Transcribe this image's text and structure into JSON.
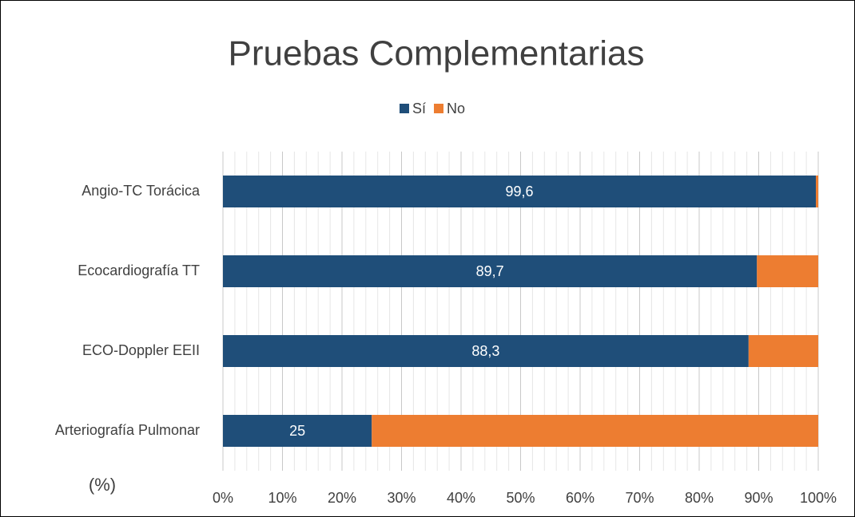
{
  "chart_data": {
    "type": "stacked_barh",
    "title": "Pruebas Complementarias",
    "annotation": "(%)",
    "categories": [
      "Angio-TC Torácica",
      "Ecocardiografía TT",
      "ECO-Doppler EEII",
      "Arteriografía Pulmonar"
    ],
    "series": [
      {
        "name": "Sí",
        "color": "#1f4e79",
        "values": [
          99.6,
          89.7,
          88.3,
          25
        ],
        "value_labels": [
          "99,6",
          "89,7",
          "88,3",
          "25"
        ]
      },
      {
        "name": "No",
        "color": "#ed7d31",
        "values": [
          0.4,
          10.3,
          11.7,
          75
        ]
      }
    ],
    "xlim": [
      0,
      100
    ],
    "xticks": [
      {
        "value": 0,
        "label": "0%"
      },
      {
        "value": 10,
        "label": "10%"
      },
      {
        "value": 20,
        "label": "20%"
      },
      {
        "value": 30,
        "label": "30%"
      },
      {
        "value": 40,
        "label": "40%"
      },
      {
        "value": 50,
        "label": "50%"
      },
      {
        "value": 60,
        "label": "60%"
      },
      {
        "value": 70,
        "label": "70%"
      },
      {
        "value": 80,
        "label": "80%"
      },
      {
        "value": 90,
        "label": "90%"
      },
      {
        "value": 100,
        "label": "100%"
      }
    ],
    "grid": true,
    "minor_grid": true,
    "legend": "top"
  }
}
